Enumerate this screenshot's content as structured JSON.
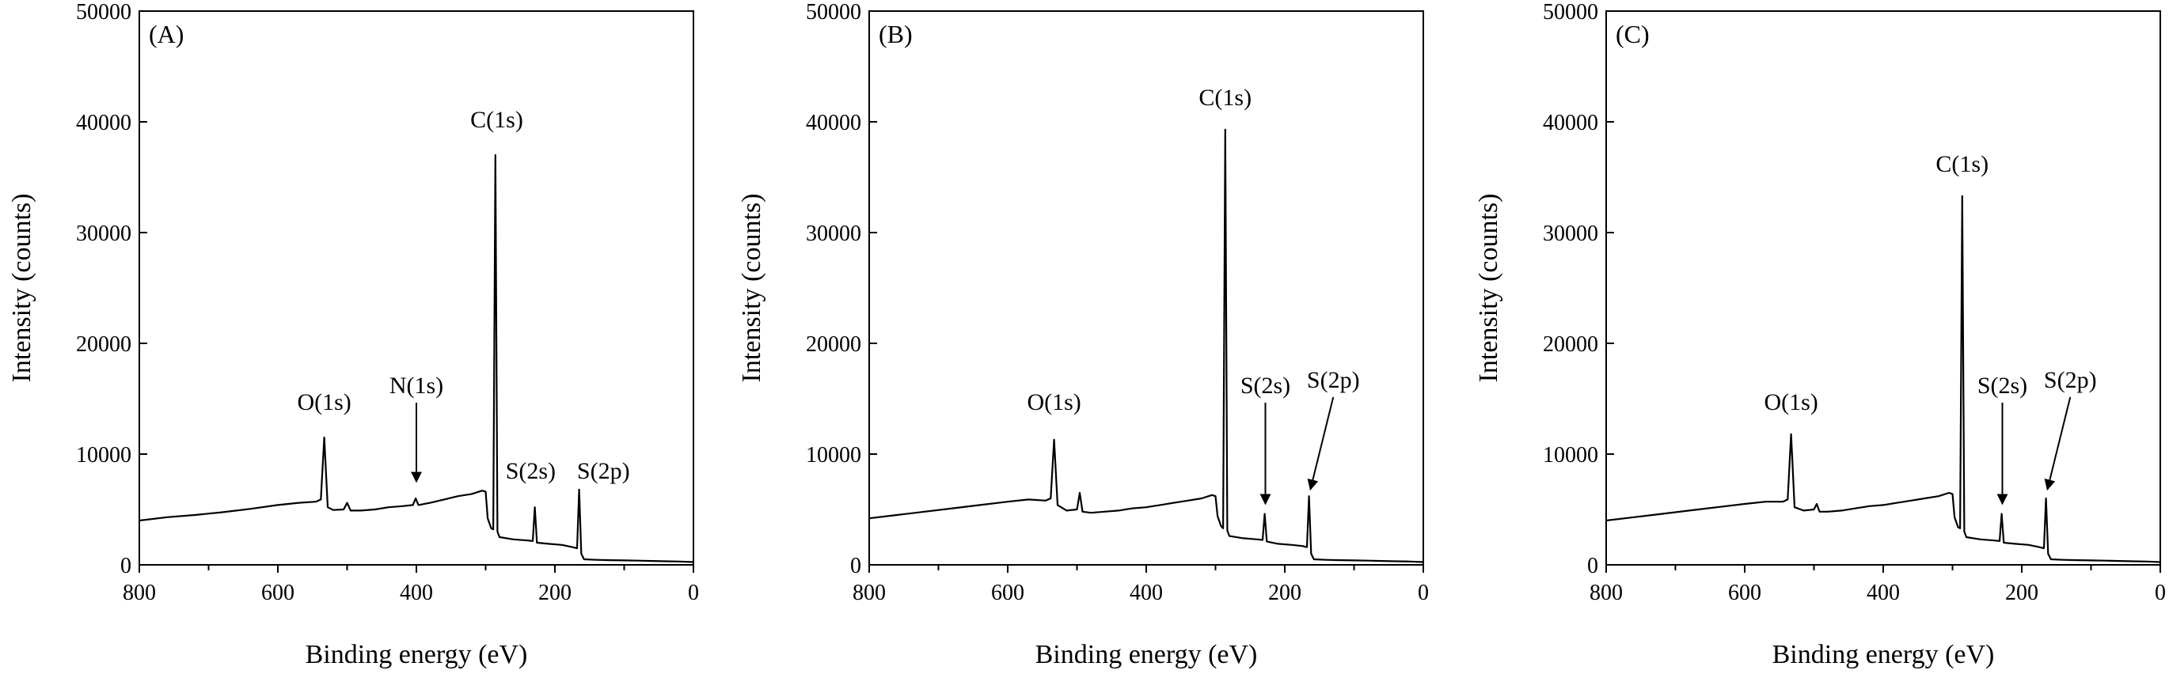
{
  "chart_data": [
    {
      "type": "line",
      "panel_label": "(A)",
      "xlabel": "Binding energy (eV)",
      "ylabel": "Intensity (counts)",
      "xlim": [
        800,
        0
      ],
      "ylim": [
        0,
        50000
      ],
      "x_ticks": [
        "800",
        "600",
        "400",
        "200",
        "0"
      ],
      "y_ticks": [
        "0",
        "10000",
        "20000",
        "30000",
        "40000",
        "50000"
      ],
      "grid": false,
      "series": [
        {
          "color": "#000000",
          "points": [
            [
              800,
              4000
            ],
            [
              760,
              4300
            ],
            [
              720,
              4500
            ],
            [
              680,
              4750
            ],
            [
              640,
              5050
            ],
            [
              600,
              5400
            ],
            [
              570,
              5600
            ],
            [
              545,
              5700
            ],
            [
              538,
              5900
            ],
            [
              533,
              11500
            ],
            [
              528,
              5200
            ],
            [
              520,
              4950
            ],
            [
              505,
              5000
            ],
            [
              500,
              5600
            ],
            [
              495,
              4900
            ],
            [
              480,
              4900
            ],
            [
              460,
              5000
            ],
            [
              440,
              5200
            ],
            [
              420,
              5300
            ],
            [
              405,
              5400
            ],
            [
              401,
              6000
            ],
            [
              397,
              5400
            ],
            [
              380,
              5600
            ],
            [
              360,
              5900
            ],
            [
              340,
              6200
            ],
            [
              320,
              6400
            ],
            [
              305,
              6700
            ],
            [
              300,
              6600
            ],
            [
              297,
              4200
            ],
            [
              292,
              3300
            ],
            [
              289,
              3200
            ],
            [
              286,
              37000
            ],
            [
              283,
              3000
            ],
            [
              280,
              2500
            ],
            [
              260,
              2300
            ],
            [
              240,
              2200
            ],
            [
              232,
              2150
            ],
            [
              229,
              5200
            ],
            [
              226,
              2000
            ],
            [
              210,
              1900
            ],
            [
              190,
              1800
            ],
            [
              175,
              1600
            ],
            [
              168,
              1500
            ],
            [
              165,
              6800
            ],
            [
              162,
              1000
            ],
            [
              158,
              500
            ],
            [
              140,
              450
            ],
            [
              120,
              420
            ],
            [
              100,
              400
            ],
            [
              80,
              380
            ],
            [
              60,
              350
            ],
            [
              40,
              320
            ],
            [
              20,
              300
            ],
            [
              0,
              250
            ]
          ]
        }
      ],
      "annotations": [
        {
          "text": "C(1s)",
          "x": 284,
          "y": 39500
        },
        {
          "text": "O(1s)",
          "x": 533,
          "y": 14000
        },
        {
          "text": "N(1s)",
          "x": 400,
          "y": 15500,
          "arrow_to": [
            400,
            7500
          ]
        },
        {
          "text": "S(2s)",
          "x": 235,
          "y": 7800
        },
        {
          "text": "S(2p)",
          "x": 130,
          "y": 7800
        }
      ]
    },
    {
      "type": "line",
      "panel_label": "(B)",
      "xlabel": "Binding energy (eV)",
      "ylabel": "Intensity (counts)",
      "xlim": [
        800,
        0
      ],
      "ylim": [
        0,
        50000
      ],
      "x_ticks": [
        "800",
        "600",
        "400",
        "200",
        "0"
      ],
      "y_ticks": [
        "0",
        "10000",
        "20000",
        "30000",
        "40000",
        "50000"
      ],
      "grid": false,
      "series": [
        {
          "color": "#000000",
          "points": [
            [
              800,
              4200
            ],
            [
              760,
              4500
            ],
            [
              720,
              4800
            ],
            [
              680,
              5100
            ],
            [
              640,
              5400
            ],
            [
              600,
              5700
            ],
            [
              570,
              5900
            ],
            [
              545,
              5800
            ],
            [
              538,
              6000
            ],
            [
              533,
              11300
            ],
            [
              528,
              5400
            ],
            [
              515,
              4900
            ],
            [
              500,
              5000
            ],
            [
              496,
              6500
            ],
            [
              492,
              4800
            ],
            [
              480,
              4700
            ],
            [
              460,
              4800
            ],
            [
              440,
              4900
            ],
            [
              420,
              5100
            ],
            [
              400,
              5200
            ],
            [
              380,
              5400
            ],
            [
              360,
              5600
            ],
            [
              340,
              5800
            ],
            [
              320,
              6000
            ],
            [
              305,
              6300
            ],
            [
              300,
              6200
            ],
            [
              297,
              4400
            ],
            [
              292,
              3500
            ],
            [
              289,
              3300
            ],
            [
              286,
              39300
            ],
            [
              283,
              3100
            ],
            [
              280,
              2600
            ],
            [
              260,
              2400
            ],
            [
              240,
              2300
            ],
            [
              232,
              2250
            ],
            [
              229,
              4600
            ],
            [
              226,
              2100
            ],
            [
              210,
              1900
            ],
            [
              190,
              1800
            ],
            [
              175,
              1700
            ],
            [
              168,
              1600
            ],
            [
              165,
              6200
            ],
            [
              162,
              1000
            ],
            [
              158,
              500
            ],
            [
              140,
              450
            ],
            [
              120,
              420
            ],
            [
              100,
              400
            ],
            [
              80,
              380
            ],
            [
              60,
              350
            ],
            [
              40,
              320
            ],
            [
              20,
              300
            ],
            [
              0,
              250
            ]
          ]
        }
      ],
      "annotations": [
        {
          "text": "C(1s)",
          "x": 286,
          "y": 41500
        },
        {
          "text": "O(1s)",
          "x": 533,
          "y": 14000
        },
        {
          "text": "S(2s)",
          "x": 228,
          "y": 15500,
          "arrow_to": [
            228,
            5500
          ]
        },
        {
          "text": "S(2p)",
          "x": 130,
          "y": 16000,
          "arrow_to": [
            163,
            6800
          ]
        }
      ]
    },
    {
      "type": "line",
      "panel_label": "(C)",
      "xlabel": "Binding energy (eV)",
      "ylabel": "Intensity (counts)",
      "xlim": [
        800,
        0
      ],
      "ylim": [
        0,
        50000
      ],
      "x_ticks": [
        "800",
        "600",
        "400",
        "200",
        "0"
      ],
      "y_ticks": [
        "0",
        "10000",
        "20000",
        "30000",
        "40000",
        "50000"
      ],
      "grid": false,
      "series": [
        {
          "color": "#000000",
          "points": [
            [
              800,
              4000
            ],
            [
              760,
              4300
            ],
            [
              720,
              4600
            ],
            [
              680,
              4900
            ],
            [
              640,
              5200
            ],
            [
              600,
              5500
            ],
            [
              570,
              5700
            ],
            [
              545,
              5700
            ],
            [
              538,
              5900
            ],
            [
              533,
              11800
            ],
            [
              528,
              5200
            ],
            [
              515,
              4900
            ],
            [
              500,
              5000
            ],
            [
              496,
              5500
            ],
            [
              492,
              4800
            ],
            [
              480,
              4800
            ],
            [
              460,
              4900
            ],
            [
              440,
              5100
            ],
            [
              420,
              5300
            ],
            [
              400,
              5400
            ],
            [
              380,
              5600
            ],
            [
              360,
              5800
            ],
            [
              340,
              6000
            ],
            [
              320,
              6200
            ],
            [
              305,
              6500
            ],
            [
              300,
              6400
            ],
            [
              297,
              4300
            ],
            [
              292,
              3400
            ],
            [
              289,
              3300
            ],
            [
              286,
              33300
            ],
            [
              283,
              3000
            ],
            [
              280,
              2500
            ],
            [
              260,
              2300
            ],
            [
              240,
              2200
            ],
            [
              232,
              2150
            ],
            [
              229,
              4600
            ],
            [
              226,
              2000
            ],
            [
              210,
              1900
            ],
            [
              190,
              1800
            ],
            [
              175,
              1600
            ],
            [
              168,
              1500
            ],
            [
              165,
              6000
            ],
            [
              162,
              1000
            ],
            [
              158,
              500
            ],
            [
              140,
              450
            ],
            [
              120,
              420
            ],
            [
              100,
              400
            ],
            [
              80,
              380
            ],
            [
              60,
              350
            ],
            [
              40,
              320
            ],
            [
              20,
              300
            ],
            [
              0,
              250
            ]
          ]
        }
      ],
      "annotations": [
        {
          "text": "C(1s)",
          "x": 286,
          "y": 35500
        },
        {
          "text": "O(1s)",
          "x": 533,
          "y": 14000
        },
        {
          "text": "S(2s)",
          "x": 228,
          "y": 15500,
          "arrow_to": [
            228,
            5500
          ]
        },
        {
          "text": "S(2p)",
          "x": 130,
          "y": 16000,
          "arrow_to": [
            163,
            6800
          ]
        }
      ]
    }
  ]
}
